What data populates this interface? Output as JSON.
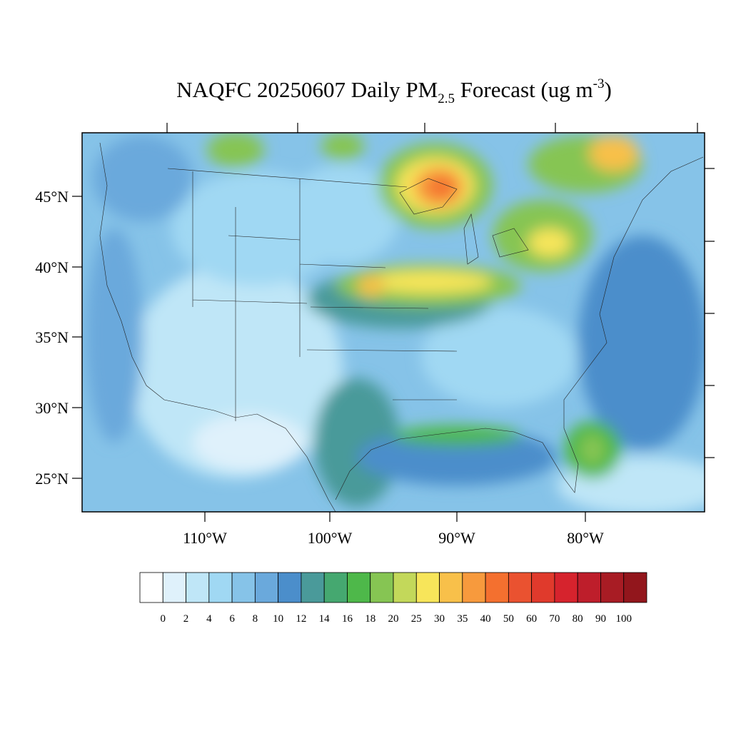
{
  "map": {
    "title": {
      "main": "NAQFC 20250607 Daily PM",
      "sub": "2.5",
      "mid": " Forecast (ug m",
      "sup": "-3",
      "end": ")"
    },
    "lat_labels": [
      "45°N",
      "40°N",
      "35°N",
      "30°N",
      "25°N"
    ],
    "lon_labels": [
      "110°W",
      "100°W",
      "90°W",
      "80°W"
    ],
    "colorbar": {
      "levels": [
        0,
        2,
        4,
        6,
        8,
        10,
        12,
        14,
        16,
        18,
        20,
        25,
        30,
        35,
        40,
        50,
        60,
        70,
        80,
        90,
        100
      ],
      "colors": [
        "#ffffff",
        "#dff1fb",
        "#bfe6f7",
        "#a0d8f3",
        "#86c3e8",
        "#6aa9dc",
        "#4b8ecb",
        "#4a9a9a",
        "#45a870",
        "#4eb84a",
        "#86c553",
        "#c3d85a",
        "#f7e55a",
        "#f8c04a",
        "#f79a3d",
        "#f4702f",
        "#ea5230",
        "#e03a2c",
        "#d6232d",
        "#be1e2b",
        "#a81c24",
        "#92161c"
      ]
    }
  }
}
